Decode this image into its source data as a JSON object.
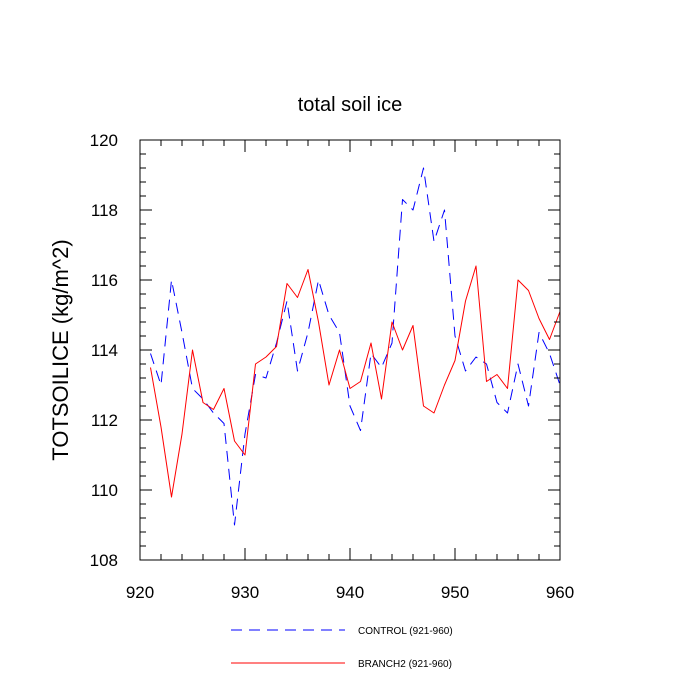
{
  "chart_data": {
    "type": "line",
    "title": "total soil ice",
    "xlabel": "",
    "ylabel": "TOTSOILICE  (kg/m^2)",
    "xlim": [
      920,
      960
    ],
    "ylim": [
      108,
      120
    ],
    "xticks": [
      920,
      930,
      940,
      950,
      960
    ],
    "yticks": [
      108,
      110,
      112,
      114,
      116,
      118,
      120
    ],
    "grid": false,
    "legend_position": "bottom",
    "x": [
      921,
      922,
      923,
      924,
      925,
      926,
      927,
      928,
      929,
      930,
      931,
      932,
      933,
      934,
      935,
      936,
      937,
      938,
      939,
      940,
      941,
      942,
      943,
      944,
      945,
      946,
      947,
      948,
      949,
      950,
      951,
      952,
      953,
      954,
      955,
      956,
      957,
      958,
      959,
      960
    ],
    "series": [
      {
        "name": "CONTROL (921-960)",
        "color": "#0000ff",
        "dash": "dashed",
        "values": [
          113.9,
          113.0,
          116.0,
          114.5,
          112.9,
          112.6,
          112.2,
          111.9,
          109.0,
          111.6,
          113.3,
          113.2,
          114.2,
          115.4,
          113.4,
          114.5,
          116.0,
          115.0,
          114.5,
          112.4,
          111.7,
          113.9,
          113.5,
          114.2,
          118.3,
          118.0,
          119.2,
          117.1,
          118.0,
          114.4,
          113.4,
          113.8,
          113.6,
          112.5,
          112.2,
          113.6,
          112.4,
          114.5,
          113.9,
          113.0
        ]
      },
      {
        "name": "BRANCH2 (921-960)",
        "color": "#ff0000",
        "dash": "solid",
        "values": [
          113.5,
          111.8,
          109.8,
          111.6,
          114.0,
          112.5,
          112.3,
          112.9,
          111.4,
          111.0,
          113.6,
          113.8,
          114.1,
          115.9,
          115.5,
          116.3,
          114.8,
          113.0,
          114.0,
          112.9,
          113.1,
          114.2,
          112.6,
          114.8,
          114.0,
          114.7,
          112.4,
          112.2,
          113.0,
          113.7,
          115.4,
          116.4,
          113.1,
          113.3,
          112.9,
          116.0,
          115.7,
          114.9,
          114.3,
          115.1
        ]
      }
    ]
  }
}
